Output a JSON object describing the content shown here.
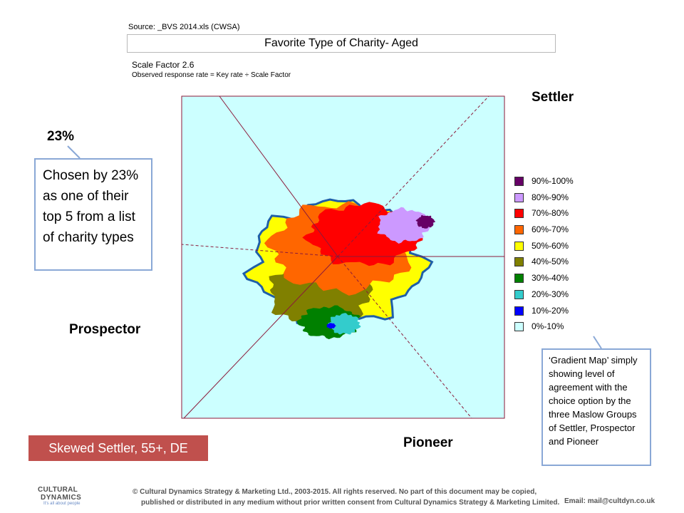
{
  "header": {
    "source": "Source: _BVS 2014.xls (CWSA)",
    "title": "Favorite Type of Charity- Aged",
    "scale_factor": "Scale Factor 2.6",
    "observed": "Observed response rate = Key rate ÷ Scale Factor"
  },
  "groups": {
    "settler": "Settler",
    "prospector": "Prospector",
    "pioneer": "Pioneer"
  },
  "callout": {
    "percent": "23%",
    "text": "Chosen by 23% as one of their top 5 from a list of charity types"
  },
  "note": {
    "text": "‘Gradient Map’ simply showing level of agreement with the choice option by the three Maslow Groups of Settler, Prospector and  Pioneer"
  },
  "segment_badge": "Skewed Settler, 55+, DE",
  "footer": {
    "copyright_line1": "© Cultural Dynamics Strategy & Marketing Ltd., 2003-2015.  All rights reserved.  No part of this document may be copied,",
    "copyright_line2": "published or distributed in any medium without prior written consent from Cultural Dynamics Strategy & Marketing Limited.",
    "email": "Email: mail@cultdyn.co.uk",
    "logo_line1": "CULTURAL",
    "logo_line2": "DYNAMICS",
    "logo_tagline": "It's all about people"
  },
  "chart_data": {
    "type": "heatmap",
    "legend": [
      {
        "label": "90%-100%",
        "color": "#660066"
      },
      {
        "label": "80%-90%",
        "color": "#cc99ff"
      },
      {
        "label": "70%-80%",
        "color": "#ff0000"
      },
      {
        "label": "60%-70%",
        "color": "#ff6600"
      },
      {
        "label": "50%-60%",
        "color": "#ffff00"
      },
      {
        "label": "40%-50%",
        "color": "#808000"
      },
      {
        "label": "30%-40%",
        "color": "#008000"
      },
      {
        "label": "20%-30%",
        "color": "#33cccc"
      },
      {
        "label": "10%-20%",
        "color": "#0000ff"
      },
      {
        "label": "0%-10%",
        "color": "#ccffff"
      }
    ],
    "background_color": "#ccffff",
    "outline_color": "#1f5fa8",
    "regions": [
      {
        "band": "50%-60%",
        "center": [
          0.5,
          0.53
        ],
        "radii": [
          0.77,
          0.65
        ]
      },
      {
        "band": "40%-50%",
        "center": [
          0.42,
          0.7
        ],
        "radii": [
          0.45,
          0.38
        ]
      },
      {
        "band": "60%-70%",
        "center": [
          0.52,
          0.45
        ],
        "radii": [
          0.64,
          0.48
        ]
      },
      {
        "band": "70%-80%",
        "center": [
          0.62,
          0.38
        ],
        "radii": [
          0.5,
          0.33
        ]
      },
      {
        "band": "80%-90%",
        "center": [
          0.8,
          0.33
        ],
        "radii": [
          0.23,
          0.18
        ]
      },
      {
        "band": "90%-100%",
        "center": [
          0.9,
          0.31
        ],
        "radii": [
          0.08,
          0.07
        ]
      },
      {
        "band": "30%-40%",
        "center": [
          0.46,
          0.86
        ],
        "radii": [
          0.27,
          0.17
        ]
      },
      {
        "band": "20%-30%",
        "center": [
          0.53,
          0.87
        ],
        "radii": [
          0.14,
          0.11
        ]
      },
      {
        "band": "10%-20%",
        "center": [
          0.47,
          0.88
        ],
        "radii": [
          0.04,
          0.03
        ]
      }
    ]
  }
}
